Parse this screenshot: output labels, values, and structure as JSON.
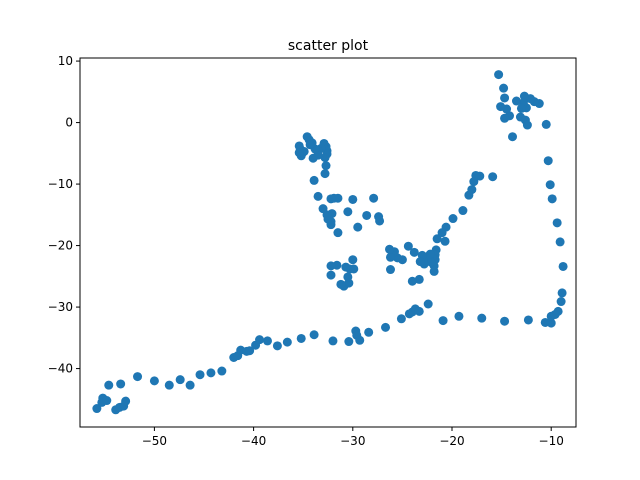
{
  "chart_data": {
    "type": "scatter",
    "title": "scatter plot",
    "xlabel": "",
    "ylabel": "",
    "xlim": [
      -57.5,
      -7.5
    ],
    "ylim": [
      -49.5,
      10.5
    ],
    "xticks": [
      -50,
      -40,
      -30,
      -20,
      -10
    ],
    "xtick_labels": [
      "−50",
      "−40",
      "−30",
      "−20",
      "−10"
    ],
    "yticks": [
      -40,
      -30,
      -20,
      -10,
      0,
      10
    ],
    "ytick_labels": [
      "−40",
      "−30",
      "−20",
      "−10",
      "0",
      "10"
    ],
    "grid": false,
    "marker_color": "#1f77b4",
    "series": [
      {
        "points": [
          [
            -55.8,
            -46.5
          ],
          [
            -55.2,
            -44.8
          ],
          [
            -55.3,
            -45.5
          ],
          [
            -54.8,
            -45.2
          ],
          [
            -54.6,
            -42.7
          ],
          [
            -53.9,
            -46.7
          ],
          [
            -53.5,
            -46.3
          ],
          [
            -53.1,
            -46.1
          ],
          [
            -53.4,
            -42.5
          ],
          [
            -52.9,
            -45.3
          ],
          [
            -51.7,
            -41.3
          ],
          [
            -50.0,
            -42.0
          ],
          [
            -48.5,
            -42.7
          ],
          [
            -47.4,
            -41.8
          ],
          [
            -46.4,
            -42.7
          ],
          [
            -45.4,
            -41.0
          ],
          [
            -44.3,
            -40.7
          ],
          [
            -43.2,
            -40.4
          ],
          [
            -42.0,
            -38.2
          ],
          [
            -41.6,
            -37.9
          ],
          [
            -41.3,
            -37.0
          ],
          [
            -40.7,
            -37.2
          ],
          [
            -40.4,
            -37.1
          ],
          [
            -39.8,
            -36.2
          ],
          [
            -39.4,
            -35.3
          ],
          [
            -38.6,
            -35.5
          ],
          [
            -37.6,
            -36.3
          ],
          [
            -36.6,
            -35.7
          ],
          [
            -35.2,
            -35.1
          ],
          [
            -33.9,
            -34.5
          ],
          [
            -32.0,
            -35.5
          ],
          [
            -30.4,
            -35.6
          ],
          [
            -29.7,
            -33.9
          ],
          [
            -29.6,
            -34.6
          ],
          [
            -29.3,
            -35.4
          ],
          [
            -28.4,
            -34.1
          ],
          [
            -26.7,
            -33.3
          ],
          [
            -25.1,
            -31.9
          ],
          [
            -24.3,
            -31.1
          ],
          [
            -24.0,
            -30.8
          ],
          [
            -23.7,
            -30.3
          ],
          [
            -23.3,
            -30.7
          ],
          [
            -22.4,
            -29.5
          ],
          [
            -20.9,
            -32.2
          ],
          [
            -19.3,
            -31.5
          ],
          [
            -17.0,
            -31.8
          ],
          [
            -14.7,
            -32.3
          ],
          [
            -12.3,
            -32.1
          ],
          [
            -10.6,
            -32.5
          ],
          [
            -10.0,
            -32.6
          ],
          [
            -10.0,
            -31.5
          ],
          [
            -9.6,
            -31.2
          ],
          [
            -9.3,
            -30.7
          ],
          [
            -9.0,
            -29.1
          ],
          [
            -8.9,
            -27.7
          ],
          [
            -8.8,
            -23.4
          ],
          [
            -9.1,
            -19.4
          ],
          [
            -9.4,
            -16.3
          ],
          [
            -9.9,
            -12.4
          ],
          [
            -10.1,
            -10.1
          ],
          [
            -10.3,
            -6.2
          ],
          [
            -10.5,
            -0.3
          ],
          [
            -11.2,
            3.1
          ],
          [
            -11.7,
            3.4
          ],
          [
            -12.1,
            3.9
          ],
          [
            -12.5,
            2.4
          ],
          [
            -12.7,
            4.3
          ],
          [
            -12.8,
            3.2
          ],
          [
            -13.1,
            0.9
          ],
          [
            -13.0,
            2.3
          ],
          [
            -12.6,
            0.4
          ],
          [
            -12.4,
            -0.4
          ],
          [
            -13.5,
            3.5
          ],
          [
            -14.2,
            1.1
          ],
          [
            -13.9,
            -2.3
          ],
          [
            -14.7,
            0.7
          ],
          [
            -14.5,
            2.2
          ],
          [
            -14.7,
            4.0
          ],
          [
            -14.8,
            5.6
          ],
          [
            -15.1,
            2.6
          ],
          [
            -15.3,
            7.8
          ],
          [
            -15.9,
            -8.8
          ],
          [
            -17.2,
            -8.7
          ],
          [
            -17.6,
            -8.6
          ],
          [
            -17.8,
            -9.6
          ],
          [
            -18.0,
            -10.9
          ],
          [
            -18.3,
            -11.8
          ],
          [
            -18.9,
            -14.3
          ],
          [
            -19.9,
            -15.6
          ],
          [
            -20.6,
            -17.0
          ],
          [
            -21.0,
            -17.9
          ],
          [
            -21.5,
            -18.9
          ],
          [
            -20.7,
            -19.3
          ],
          [
            -21.6,
            -20.7
          ],
          [
            -21.7,
            -21.5
          ],
          [
            -21.7,
            -22.3
          ],
          [
            -21.8,
            -23.3
          ],
          [
            -21.8,
            -24.2
          ],
          [
            -22.0,
            -21.9
          ],
          [
            -22.1,
            -22.7
          ],
          [
            -22.2,
            -21.4
          ],
          [
            -22.5,
            -22.2
          ],
          [
            -22.8,
            -23.0
          ],
          [
            -22.9,
            -22.4
          ],
          [
            -23.0,
            -21.6
          ],
          [
            -23.2,
            -22.6
          ],
          [
            -23.3,
            -25.5
          ],
          [
            -23.8,
            -21.1
          ],
          [
            -24.0,
            -25.8
          ],
          [
            -24.4,
            -20.1
          ],
          [
            -25.0,
            -22.3
          ],
          [
            -25.5,
            -22.0
          ],
          [
            -25.8,
            -21.0
          ],
          [
            -26.2,
            -21.9
          ],
          [
            -26.3,
            -20.6
          ],
          [
            -26.2,
            -23.9
          ],
          [
            -27.3,
            -16.0
          ],
          [
            -27.4,
            -15.3
          ],
          [
            -27.9,
            -12.3
          ],
          [
            -28.6,
            -15.1
          ],
          [
            -29.5,
            -17.0
          ],
          [
            -29.9,
            -23.8
          ],
          [
            -30.0,
            -22.3
          ],
          [
            -30.3,
            -23.8
          ],
          [
            -30.4,
            -26.1
          ],
          [
            -30.0,
            -12.5
          ],
          [
            -30.5,
            -14.5
          ],
          [
            -30.5,
            -25.1
          ],
          [
            -30.7,
            -23.5
          ],
          [
            -30.9,
            -26.6
          ],
          [
            -31.5,
            -17.9
          ],
          [
            -31.5,
            -12.3
          ],
          [
            -31.6,
            -23.2
          ],
          [
            -31.9,
            -12.3
          ],
          [
            -32.2,
            -23.3
          ],
          [
            -32.2,
            -24.8
          ],
          [
            -32.2,
            -12.4
          ],
          [
            -32.2,
            -16.1
          ],
          [
            -32.2,
            -16.6
          ],
          [
            -32.1,
            -14.8
          ],
          [
            -32.5,
            -15.7
          ],
          [
            -32.6,
            -15.0
          ],
          [
            -33.0,
            -14.0
          ],
          [
            -33.5,
            -12.0
          ],
          [
            -33.9,
            -9.4
          ],
          [
            -32.6,
            -4.6
          ],
          [
            -32.7,
            -3.9
          ],
          [
            -32.6,
            -5.1
          ],
          [
            -32.7,
            -7.0
          ],
          [
            -32.8,
            -8.3
          ],
          [
            -32.9,
            -3.4
          ],
          [
            -32.8,
            -5.7
          ],
          [
            -33.2,
            -4.2
          ],
          [
            -33.5,
            -4.6
          ],
          [
            -33.5,
            -5.3
          ],
          [
            -33.8,
            -4.3
          ],
          [
            -34.0,
            -5.8
          ],
          [
            -34.1,
            -3.3
          ],
          [
            -34.3,
            -3.6
          ],
          [
            -34.4,
            -2.8
          ],
          [
            -34.6,
            -2.3
          ],
          [
            -34.9,
            -4.7
          ],
          [
            -35.2,
            -5.4
          ],
          [
            -35.3,
            -4.3
          ],
          [
            -35.4,
            -3.8
          ],
          [
            -35.1,
            -5.0
          ],
          [
            -35.4,
            -4.9
          ],
          [
            -31.2,
            -26.3
          ]
        ]
      }
    ]
  }
}
